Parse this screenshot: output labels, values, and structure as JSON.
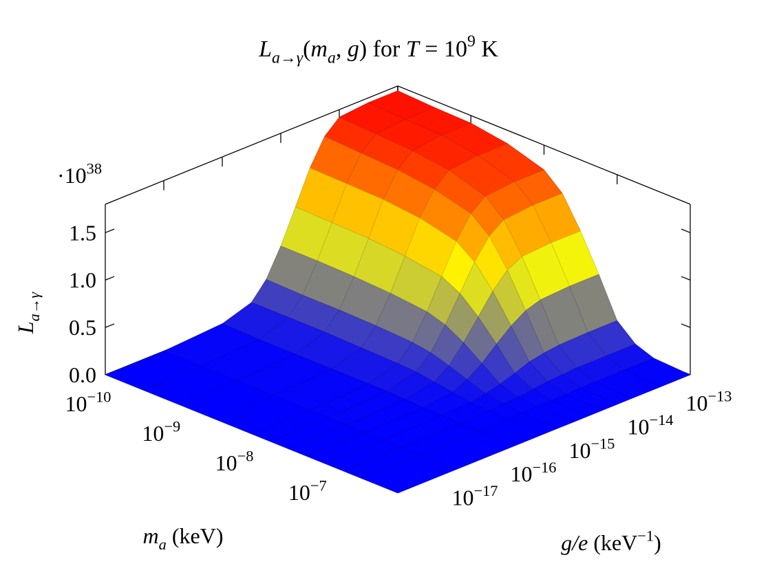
{
  "chart_data": {
    "type": "surface",
    "title": [
      {
        "text": "L",
        "style": "italic"
      },
      {
        "text": "a→γ",
        "style": "italic sub"
      },
      {
        "text": "("
      },
      {
        "text": "m",
        "style": "italic"
      },
      {
        "text": "a",
        "style": "italic sub"
      },
      {
        "text": ", "
      },
      {
        "text": "g",
        "style": "italic"
      },
      {
        "text": ") for "
      },
      {
        "text": "T",
        "style": "italic"
      },
      {
        "text": " = 10"
      },
      {
        "text": "9",
        "style": "sup"
      },
      {
        "text": " K"
      }
    ],
    "xlabel": [
      {
        "text": "m",
        "style": "italic"
      },
      {
        "text": "a",
        "style": "italic sub"
      },
      {
        "text": " (keV)"
      }
    ],
    "ylabel": [
      {
        "text": "g/e",
        "style": "italic"
      },
      {
        "text": " (keV"
      },
      {
        "text": "−1",
        "style": "sup"
      },
      {
        "text": ")"
      }
    ],
    "zlabel": [
      {
        "text": "L",
        "style": "italic"
      },
      {
        "text": "a→γ",
        "style": "italic sub"
      }
    ],
    "zmultiplier": [
      {
        "text": "·10"
      },
      {
        "text": "38",
        "style": "sup"
      }
    ],
    "xscale": "log",
    "yscale": "log",
    "xlim": [
      1e-10,
      1e-06
    ],
    "ylim": [
      1e-18,
      1e-13
    ],
    "zlim": [
      0,
      1.8
    ],
    "xticks": [
      {
        "value": 1e-10,
        "label": [
          {
            "text": "10"
          },
          {
            "text": "−10",
            "style": "sup"
          }
        ]
      },
      {
        "value": 1e-09,
        "label": [
          {
            "text": "10"
          },
          {
            "text": "−9",
            "style": "sup"
          }
        ]
      },
      {
        "value": 1e-08,
        "label": [
          {
            "text": "10"
          },
          {
            "text": "−8",
            "style": "sup"
          }
        ]
      },
      {
        "value": 1e-07,
        "label": [
          {
            "text": "10"
          },
          {
            "text": "−7",
            "style": "sup"
          }
        ]
      }
    ],
    "yticks": [
      {
        "value": 1e-17,
        "label": [
          {
            "text": "10"
          },
          {
            "text": "−17",
            "style": "sup"
          }
        ]
      },
      {
        "value": 1e-16,
        "label": [
          {
            "text": "10"
          },
          {
            "text": "−16",
            "style": "sup"
          }
        ]
      },
      {
        "value": 1e-15,
        "label": [
          {
            "text": "10"
          },
          {
            "text": "−15",
            "style": "sup"
          }
        ]
      },
      {
        "value": 1e-14,
        "label": [
          {
            "text": "10"
          },
          {
            "text": "−14",
            "style": "sup"
          }
        ]
      },
      {
        "value": 1e-13,
        "label": [
          {
            "text": "10"
          },
          {
            "text": "−13",
            "style": "sup"
          }
        ]
      }
    ],
    "zticks": [
      {
        "value": 0,
        "label": "0.0"
      },
      0.5,
      {
        "value": 1,
        "label": "1.0"
      },
      1.5
    ],
    "colormap": [
      "#0000ff",
      "#ffff00",
      "#ff0000"
    ],
    "x": [
      1e-10,
      3.16e-10,
      1e-09,
      3.16e-09,
      1e-08,
      1.78e-08,
      3.16e-08,
      5.62e-08,
      1e-07,
      1.78e-07,
      3.16e-07,
      1e-06
    ],
    "y": [
      1e-18,
      1e-17,
      1e-16,
      3.16e-16,
      5.62e-16,
      1e-15,
      1.78e-15,
      3.16e-15,
      5.62e-15,
      1e-14,
      3.16e-14,
      1e-13
    ],
    "z": [
      [
        0,
        0,
        0.04,
        0.14,
        0.32,
        0.61,
        0.96,
        1.31,
        1.58,
        1.72,
        1.75,
        1.75
      ],
      [
        0,
        0,
        0.03,
        0.14,
        0.31,
        0.61,
        0.95,
        1.3,
        1.56,
        1.7,
        1.73,
        1.73
      ],
      [
        0,
        0,
        0.03,
        0.14,
        0.31,
        0.6,
        0.94,
        1.29,
        1.54,
        1.68,
        1.72,
        1.72
      ],
      [
        0,
        0,
        0.03,
        0.13,
        0.3,
        0.58,
        0.91,
        1.25,
        1.49,
        1.63,
        1.66,
        1.66
      ],
      [
        0,
        0,
        0.03,
        0.12,
        0.28,
        0.54,
        0.85,
        1.16,
        1.39,
        1.51,
        1.54,
        1.54
      ],
      [
        0,
        0,
        0.03,
        0.11,
        0.25,
        0.48,
        0.75,
        1.02,
        1.23,
        1.34,
        1.37,
        1.37
      ],
      [
        0,
        0,
        0.02,
        0.08,
        0.19,
        0.37,
        0.58,
        0.79,
        0.95,
        1.03,
        1.05,
        1.05
      ],
      [
        0,
        0,
        0.01,
        0.05,
        0.12,
        0.23,
        0.37,
        0.5,
        0.6,
        0.65,
        0.67,
        0.67
      ],
      [
        0,
        0,
        0.01,
        0.02,
        0.05,
        0.09,
        0.14,
        0.2,
        0.23,
        0.25,
        0.26,
        0.26
      ],
      [
        0,
        0,
        0,
        0.01,
        0.02,
        0.03,
        0.05,
        0.07,
        0.08,
        0.09,
        0.09,
        0.09
      ],
      [
        0,
        0,
        0,
        0,
        0,
        0.01,
        0.01,
        0.01,
        0.02,
        0.02,
        0.02,
        0.02
      ],
      [
        0,
        0,
        0,
        0,
        0,
        0,
        0,
        0,
        0,
        0,
        0,
        0
      ]
    ]
  }
}
